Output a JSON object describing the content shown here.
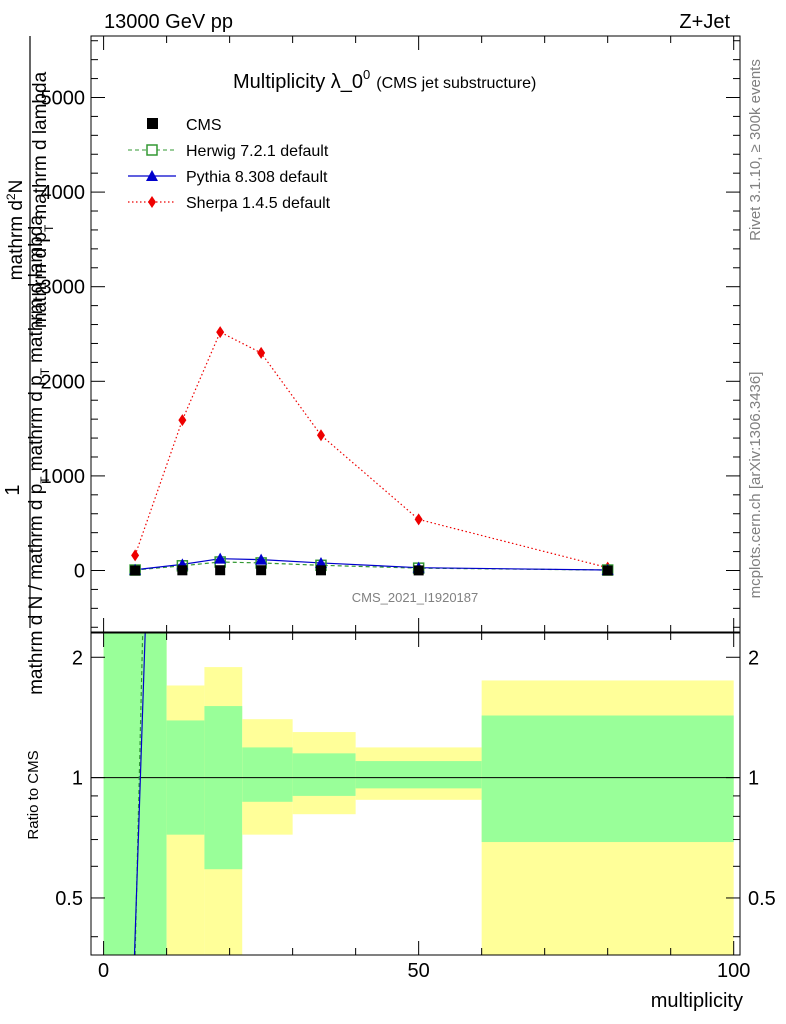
{
  "header": {
    "left": "13000 GeV pp",
    "right": "Z+Jet"
  },
  "side_text": {
    "rivet": "Rivet 3.1.10, ≥ 300k events",
    "mcplots": "mcplots.cern.ch [arXiv:1306.3436]"
  },
  "colors": {
    "cms": "#000000",
    "herwig": "#339933",
    "pythia": "#0000cc",
    "sherpa": "#ee0000",
    "band_inner": "#99ff99",
    "band_outer": "#ffff99"
  },
  "chart_data": [
    {
      "type": "line",
      "title": "Multiplicity λ_0",
      "title_sup": "0",
      "title_suffix": "(CMS jet substructure)",
      "ylabel_numerator": "1",
      "ylabel_parts": [
        "mathrm d N / mathrm d p",
        "T",
        "mathrm d",
        "2",
        "N"
      ],
      "ylabel_top": "mathrm d",
      "ylabel_top_sup": "2",
      "ylabel_top_main": "N",
      "ylabel_bottom": "mathrm d p",
      "ylabel_bottom_sub": "T",
      "ylabel_bottom_rest": "mathrm d lambda",
      "ylabel_denom": "mathrm d N / mathrm d p",
      "ylabel_denom_sub": "T",
      "ylabel_denom_rest": "mathrm d p",
      "ylabel_denom_sub2": "T",
      "ylabel_denom_end": "mathrm d lambda",
      "xlim": [
        -2,
        101
      ],
      "ylim": [
        -650,
        5650
      ],
      "yticks": [
        0,
        1000,
        2000,
        3000,
        4000,
        5000
      ],
      "ytick_labels": [
        "0",
        "1000",
        "2000",
        "3000",
        "4000",
        "5000"
      ],
      "watermark": "CMS_2021_I1920187",
      "legend": {
        "placement": "top-left",
        "entries": [
          "CMS",
          "Herwig 7.2.1 default",
          "Pythia 8.308 default",
          "Sherpa 1.4.5 default"
        ]
      },
      "x": [
        5,
        12.5,
        18.5,
        25,
        34.5,
        50,
        80
      ],
      "series": [
        {
          "name": "CMS",
          "marker": "square-filled",
          "values": [
            0,
            2,
            3,
            3,
            2,
            1,
            0
          ]
        },
        {
          "name": "Herwig 7.2.1 default",
          "marker": "square-open",
          "line": "dashed",
          "values": [
            5,
            50,
            90,
            80,
            55,
            25,
            5
          ]
        },
        {
          "name": "Pythia 8.308 default",
          "marker": "triangle",
          "line": "solid",
          "values": [
            8,
            65,
            125,
            115,
            80,
            30,
            5
          ]
        },
        {
          "name": "Sherpa 1.4.5 default",
          "marker": "diamond",
          "line": "dotted",
          "values": [
            160,
            1590,
            2520,
            2300,
            1430,
            540,
            30
          ]
        }
      ]
    },
    {
      "type": "area",
      "ylabel": "Ratio to CMS",
      "xlabel": "multiplicity",
      "xlim": [
        -2,
        101
      ],
      "ylim": [
        0.36,
        2.3
      ],
      "yscale": "log",
      "yticks": [
        0.5,
        1,
        2
      ],
      "ytick_labels": [
        "0.5",
        "1",
        "2"
      ],
      "xticks": [
        0,
        50,
        100
      ],
      "xtick_labels": [
        "0",
        "50",
        "100"
      ],
      "bins": [
        {
          "lo": 0,
          "hi": 10,
          "inner": [
            0.36,
            2.3
          ],
          "outer": [
            0.36,
            2.3
          ]
        },
        {
          "lo": 10,
          "hi": 16,
          "inner": [
            0.72,
            1.39
          ],
          "outer": [
            0.36,
            1.7
          ]
        },
        {
          "lo": 16,
          "hi": 22,
          "inner": [
            0.59,
            1.51
          ],
          "outer": [
            0.36,
            1.89
          ]
        },
        {
          "lo": 22,
          "hi": 30,
          "inner": [
            0.87,
            1.19
          ],
          "outer": [
            0.72,
            1.4
          ]
        },
        {
          "lo": 30,
          "hi": 40,
          "inner": [
            0.9,
            1.15
          ],
          "outer": [
            0.81,
            1.3
          ]
        },
        {
          "lo": 40,
          "hi": 60,
          "inner": [
            0.94,
            1.1
          ],
          "outer": [
            0.88,
            1.19
          ]
        },
        {
          "lo": 60,
          "hi": 100,
          "inner": [
            0.69,
            1.43
          ],
          "outer": [
            0.36,
            1.75
          ]
        }
      ],
      "ratio_lines": [
        {
          "name": "Herwig 7.2.1 default",
          "points": [
            [
              5,
              0.36
            ],
            [
              6.2,
              2.3
            ]
          ]
        },
        {
          "name": "Pythia 8.308 default",
          "points": [
            [
              4.9,
              0.36
            ],
            [
              6.6,
              2.3
            ]
          ]
        }
      ],
      "reference": 1
    }
  ]
}
